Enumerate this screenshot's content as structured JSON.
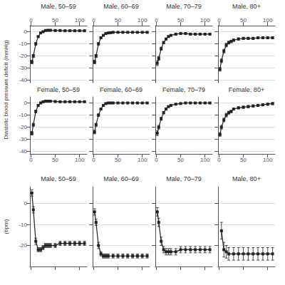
{
  "chart_data": [
    {
      "type": "line",
      "title": "Male, 50–59",
      "ylabel": "Diastolic blood pressure deficit (mmHg)",
      "x": [
        2,
        5,
        10,
        15,
        20,
        25,
        30,
        35,
        40,
        50,
        60,
        70,
        80,
        90,
        100,
        110
      ],
      "values": [
        -25,
        -20,
        -10,
        -4,
        -1,
        0,
        1,
        1.2,
        1.2,
        1,
        1,
        0.8,
        0.8,
        0.8,
        0.8,
        0.8
      ],
      "errors": [
        1.5,
        1.2,
        1,
        0.5,
        0.3,
        0.3,
        0.3,
        0.3,
        0.3,
        0.3,
        0.3,
        0.3,
        0.3,
        0.3,
        0.3,
        0.3
      ],
      "color": "#222222",
      "marker": "square",
      "xlim": [
        -2,
        115
      ],
      "xticks": [
        0,
        50,
        100
      ],
      "ylim": [
        -42,
        5
      ],
      "yticks": [
        -40,
        -30,
        -20,
        -10,
        0
      ],
      "grid": true
    },
    {
      "type": "line",
      "title": "Male, 60–69",
      "x": [
        2,
        5,
        10,
        15,
        20,
        25,
        30,
        35,
        40,
        50,
        60,
        70,
        80,
        90,
        100,
        110
      ],
      "values": [
        -25,
        -20,
        -10,
        -5,
        -3,
        -1.5,
        -1,
        -0.8,
        -0.5,
        -0.5,
        -0.5,
        -0.5,
        -0.5,
        -0.5,
        -0.5,
        -0.5
      ],
      "errors": [
        1.5,
        1.2,
        1,
        0.5,
        0.3,
        0.3,
        0.3,
        0.3,
        0.3,
        0.3,
        0.3,
        0.3,
        0.3,
        0.3,
        0.3,
        0.3
      ],
      "color": "#222222",
      "marker": "square",
      "xlim": [
        -2,
        115
      ],
      "xticks": [
        0,
        50,
        100
      ],
      "ylim": [
        -42,
        5
      ],
      "yticks": [
        -40,
        -30,
        -20,
        -10,
        0
      ],
      "grid": true,
      "tick_labels": "x"
    },
    {
      "type": "line",
      "title": "Male, 70–79",
      "x": [
        2,
        5,
        10,
        15,
        20,
        25,
        30,
        40,
        50,
        60,
        70,
        80,
        90,
        100,
        110
      ],
      "values": [
        -26,
        -22,
        -14,
        -9,
        -6,
        -4,
        -3,
        -2,
        -1.5,
        -1.5,
        -2,
        -2,
        -2,
        -2,
        -2
      ],
      "errors": [
        2,
        1.5,
        1.2,
        1,
        0.8,
        0.6,
        0.5,
        0.5,
        0.5,
        0.5,
        0.5,
        0.5,
        0.5,
        0.5,
        0.5
      ],
      "color": "#222222",
      "marker": "square",
      "xlim": [
        -2,
        115
      ],
      "xticks": [
        0,
        50,
        100
      ],
      "ylim": [
        -42,
        5
      ],
      "yticks": [
        -40,
        -30,
        -20,
        -10,
        0
      ],
      "grid": true,
      "tick_labels": "x"
    },
    {
      "type": "line",
      "title": "Male, 80+",
      "x": [
        2,
        5,
        10,
        15,
        20,
        25,
        30,
        40,
        50,
        60,
        70,
        80,
        90,
        100,
        110
      ],
      "values": [
        -31,
        -24,
        -16,
        -11,
        -9,
        -8,
        -7,
        -6,
        -5.5,
        -5.5,
        -5.5,
        -5,
        -5,
        -5,
        -5
      ],
      "errors": [
        1.5,
        1.5,
        1.5,
        1.5,
        1.2,
        1.0,
        0.9,
        0.9,
        0.9,
        0.9,
        0.9,
        0.9,
        0.9,
        0.9,
        0.9
      ],
      "color": "#222222",
      "marker": "square",
      "xlim": [
        -2,
        115
      ],
      "xticks": [
        0,
        50,
        100
      ],
      "ylim": [
        -42,
        5
      ],
      "yticks": [
        -40,
        -30,
        -20,
        -10,
        0
      ],
      "grid": true,
      "tick_labels": "x"
    },
    {
      "type": "line",
      "title": "Female, 50–59",
      "x": [
        2,
        5,
        10,
        15,
        20,
        25,
        30,
        35,
        40,
        50,
        60,
        70,
        80,
        90,
        100,
        110
      ],
      "values": [
        -25,
        -18,
        -7,
        -2,
        0,
        1,
        1.5,
        1.5,
        1.5,
        1.2,
        1,
        1,
        1,
        1,
        1,
        1
      ],
      "errors": [
        1.5,
        1.2,
        1,
        0.5,
        0.3,
        0.3,
        0.3,
        0.3,
        0.3,
        0.3,
        0.3,
        0.3,
        0.3,
        0.3,
        0.3,
        0.3
      ],
      "color": "#222222",
      "marker": "square",
      "xlim": [
        -2,
        115
      ],
      "xticks": [
        0,
        50,
        100
      ],
      "ylim": [
        -42,
        5
      ],
      "yticks": [
        -40,
        -30,
        -20,
        -10,
        0
      ],
      "grid": true
    },
    {
      "type": "line",
      "title": "Female, 60–69",
      "x": [
        2,
        5,
        10,
        15,
        20,
        25,
        30,
        35,
        40,
        50,
        60,
        70,
        80,
        90,
        100,
        110
      ],
      "values": [
        -24,
        -18,
        -10,
        -5,
        -2,
        -0.5,
        0,
        0,
        0,
        0,
        0,
        0,
        0,
        0,
        0,
        0
      ],
      "errors": [
        1.5,
        1.2,
        1,
        0.5,
        0.3,
        0.3,
        0.3,
        0.3,
        0.3,
        0.3,
        0.3,
        0.3,
        0.3,
        0.3,
        0.3,
        0.3
      ],
      "color": "#222222",
      "marker": "square",
      "xlim": [
        -2,
        115
      ],
      "xticks": [
        0,
        50,
        100
      ],
      "ylim": [
        -42,
        5
      ],
      "yticks": [
        -40,
        -30,
        -20,
        -10,
        0
      ],
      "grid": true,
      "tick_labels": "x"
    },
    {
      "type": "line",
      "title": "Female, 70–79",
      "x": [
        2,
        5,
        10,
        15,
        20,
        25,
        30,
        40,
        50,
        60,
        70,
        80,
        90,
        100,
        110
      ],
      "values": [
        -25,
        -20,
        -13,
        -8,
        -5,
        -3,
        -2,
        -1,
        -0.5,
        0,
        0,
        0,
        0,
        0,
        0
      ],
      "errors": [
        2,
        1.5,
        1.2,
        1,
        0.8,
        0.6,
        0.5,
        0.5,
        0.5,
        0.5,
        0.5,
        0.5,
        0.5,
        0.5,
        0.5
      ],
      "color": "#222222",
      "marker": "square",
      "xlim": [
        -2,
        115
      ],
      "xticks": [
        0,
        50,
        100
      ],
      "ylim": [
        -42,
        5
      ],
      "yticks": [
        -40,
        -30,
        -20,
        -10,
        0
      ],
      "grid": true,
      "tick_labels": "x"
    },
    {
      "type": "line",
      "title": "Female, 80+",
      "x": [
        2,
        5,
        10,
        15,
        20,
        25,
        30,
        40,
        50,
        60,
        70,
        80,
        90,
        100,
        110
      ],
      "values": [
        -26,
        -20,
        -14,
        -10,
        -8,
        -7,
        -5,
        -4,
        -3.5,
        -3,
        -2.5,
        -2,
        -1.5,
        -1,
        -0.5
      ],
      "errors": [
        1.5,
        1.5,
        1.5,
        1.5,
        1.2,
        1.0,
        0.9,
        0.9,
        0.9,
        0.9,
        0.9,
        0.9,
        0.9,
        0.9,
        0.9
      ],
      "color": "#222222",
      "marker": "square",
      "xlim": [
        -2,
        115
      ],
      "xticks": [
        0,
        50,
        100
      ],
      "ylim": [
        -42,
        5
      ],
      "yticks": [
        -40,
        -30,
        -20,
        -10,
        0
      ],
      "grid": true,
      "tick_labels": "x"
    },
    {
      "type": "line",
      "title": "Male, 50–59",
      "ylabel": "(bpm)",
      "x": [
        2,
        5,
        10,
        15,
        20,
        25,
        30,
        35,
        40,
        50,
        60,
        70,
        80,
        90,
        100,
        110
      ],
      "values": [
        5,
        -3,
        -18,
        -22,
        -22,
        -21,
        -20,
        -20,
        -20,
        -20,
        -19,
        -19,
        -19,
        -19,
        -19,
        -19
      ],
      "errors": [
        1.5,
        1.5,
        1.5,
        1,
        1,
        1,
        1,
        1,
        1,
        1,
        1,
        1,
        1,
        1,
        1,
        1
      ],
      "color": "#222222",
      "marker": "square",
      "xlim": [
        -2,
        115
      ],
      "xticks": [
        0,
        50,
        100
      ],
      "ylim": [
        -30,
        8
      ],
      "yticks": [
        -20,
        -10,
        0
      ],
      "grid": true,
      "tick_labels": "y"
    },
    {
      "type": "line",
      "title": "Male, 60–69",
      "x": [
        2,
        5,
        10,
        15,
        20,
        25,
        30,
        40,
        50,
        60,
        70,
        80,
        90,
        100,
        110
      ],
      "values": [
        -4,
        -9,
        -20,
        -24,
        -25,
        -25,
        -25,
        -25,
        -25,
        -25,
        -25,
        -25,
        -25,
        -25,
        -25
      ],
      "errors": [
        1.5,
        1.5,
        1.5,
        1,
        1,
        1,
        1,
        1,
        1,
        1,
        1,
        1,
        1,
        1,
        1
      ],
      "color": "#222222",
      "marker": "square",
      "xlim": [
        -2,
        115
      ],
      "xticks": [
        0,
        50,
        100
      ],
      "ylim": [
        -30,
        8
      ],
      "yticks": [
        -20,
        -10,
        0
      ],
      "grid": true,
      "tick_labels": false
    },
    {
      "type": "line",
      "title": "Male, 70–79",
      "x": [
        2,
        5,
        10,
        15,
        20,
        25,
        30,
        40,
        50,
        60,
        70,
        80,
        90,
        100,
        110
      ],
      "values": [
        -4,
        -9,
        -18,
        -22,
        -23,
        -23,
        -23,
        -23,
        -22,
        -22,
        -22,
        -22,
        -22,
        -22,
        -22
      ],
      "errors": [
        2,
        2,
        2,
        1.5,
        1.5,
        1.5,
        1.5,
        1.5,
        1.5,
        1.5,
        1.5,
        1.5,
        1.5,
        1.5,
        1.5
      ],
      "color": "#222222",
      "marker": "square",
      "xlim": [
        -2,
        115
      ],
      "xticks": [
        0,
        50,
        100
      ],
      "ylim": [
        -30,
        8
      ],
      "yticks": [
        -20,
        -10,
        0
      ],
      "grid": true,
      "tick_labels": false
    },
    {
      "type": "line",
      "title": "Male, 80+",
      "x": [
        5,
        10,
        15,
        20,
        30,
        40,
        50,
        60,
        70,
        80,
        90,
        100,
        110
      ],
      "values": [
        -13,
        -22,
        -23,
        -24,
        -24,
        -24,
        -24,
        -24,
        -24,
        -24,
        -24,
        -24,
        -24
      ],
      "errors": [
        4,
        3.5,
        3,
        3,
        3,
        3,
        3,
        3,
        3,
        3,
        3,
        3,
        3
      ],
      "color": "#222222",
      "marker": "square",
      "xlim": [
        -2,
        115
      ],
      "xticks": [
        0,
        50,
        100
      ],
      "ylim": [
        -30,
        8
      ],
      "yticks": [
        -20,
        -10,
        0
      ],
      "grid": true,
      "tick_labels": false
    }
  ]
}
